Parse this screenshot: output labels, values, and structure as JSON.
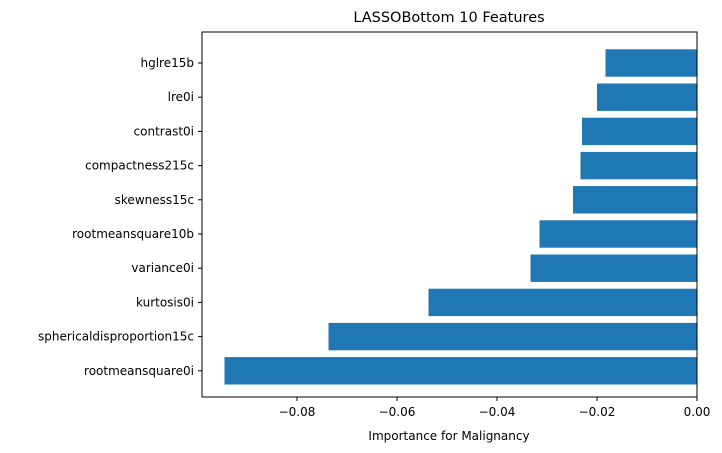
{
  "chart_data": {
    "type": "bar",
    "orientation": "horizontal",
    "title": "LASSOBottom 10 Features",
    "xlabel": "Importance for Malignancy",
    "ylabel": "",
    "categories": [
      "hglre15b",
      "lre0i",
      "contrast0i",
      "compactness215c",
      "skewness15c",
      "rootmeansquare10b",
      "variance0i",
      "kurtosis0i",
      "sphericaldisproportion15c",
      "rootmeansquare0i"
    ],
    "values": [
      -0.0183,
      -0.02,
      -0.023,
      -0.0233,
      -0.0248,
      -0.0315,
      -0.0333,
      -0.0537,
      -0.0737,
      -0.0945
    ],
    "xlim": [
      -0.099,
      0.0
    ],
    "xticks": [
      -0.08,
      -0.06,
      -0.04,
      -0.02,
      0.0
    ],
    "xtick_labels": [
      "−0.08",
      "−0.06",
      "−0.04",
      "−0.02",
      "0.00"
    ],
    "bar_color": "#1f77b4",
    "grid": false,
    "legend": "none"
  }
}
